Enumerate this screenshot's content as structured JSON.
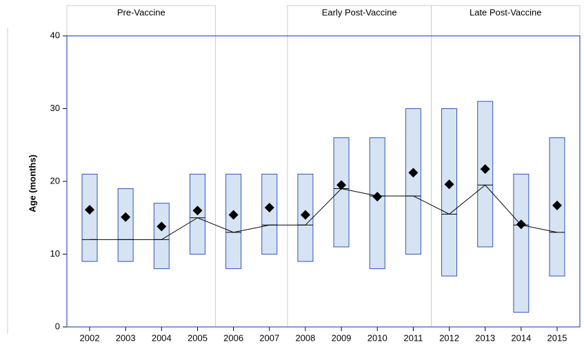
{
  "chart_data": {
    "type": "box",
    "y_label": "Age (months)",
    "categories": [
      "2002",
      "2003",
      "2004",
      "2005",
      "2006",
      "2007",
      "2008",
      "2009",
      "2010",
      "2011",
      "2012",
      "2013",
      "2014",
      "2015"
    ],
    "q1": [
      9,
      9,
      8,
      10,
      8,
      10,
      9,
      11,
      8,
      10,
      7,
      11,
      2,
      7
    ],
    "median": [
      12,
      12,
      12,
      15,
      13,
      14,
      14,
      19,
      18,
      18,
      15.5,
      19.5,
      14,
      13
    ],
    "q3": [
      21,
      19,
      17,
      21,
      21,
      21,
      21,
      26,
      26,
      30,
      30,
      31,
      21,
      26
    ],
    "mean": [
      16.1,
      15.1,
      13.8,
      16.0,
      15.4,
      16.4,
      15.4,
      19.5,
      17.9,
      21.2,
      19.6,
      21.7,
      14.1,
      16.7
    ],
    "box_fill": "#d6e3f2",
    "box_stroke": "#2f55b4",
    "periods": [
      {
        "label": "Pre-Vaccine",
        "from": "2002",
        "to": "2005"
      },
      {
        "label": "Early Post-Vaccine",
        "from": "2008",
        "to": "2011"
      },
      {
        "label": "Late Post-Vaccine",
        "from": "2012",
        "to": "2015"
      }
    ],
    "ylim": [
      0,
      40
    ],
    "yticks": [
      0,
      10,
      20,
      30,
      40
    ]
  }
}
